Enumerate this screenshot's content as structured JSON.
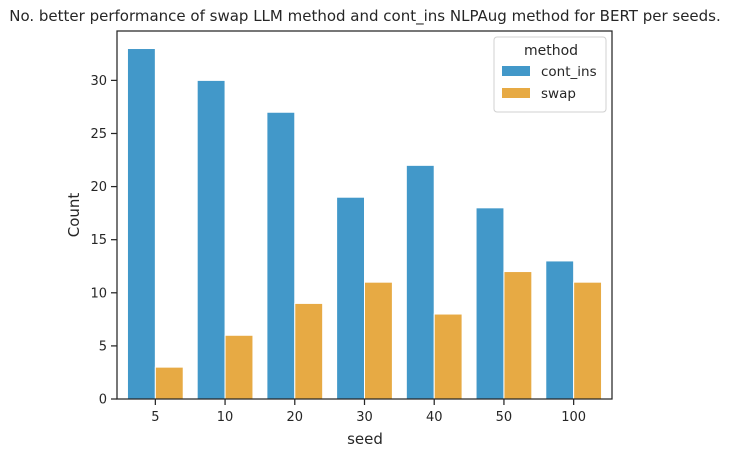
{
  "chart_data": {
    "type": "bar",
    "title": "No. better performance of swap LLM method and cont_ins NLPAug method for BERT per seeds.",
    "xlabel": "seed",
    "ylabel": "Count",
    "categories": [
      "5",
      "10",
      "20",
      "30",
      "40",
      "50",
      "100"
    ],
    "series": [
      {
        "name": "cont_ins",
        "color": "#4298c9",
        "values": [
          33,
          30,
          27,
          19,
          22,
          18,
          13
        ]
      },
      {
        "name": "swap",
        "color": "#e7aa44",
        "values": [
          3,
          6,
          9,
          11,
          8,
          12,
          11
        ]
      }
    ],
    "ylim": [
      0,
      34.65
    ],
    "yticks": [
      0,
      5,
      10,
      15,
      20,
      25,
      30
    ],
    "grid": false,
    "legend": {
      "title": "method",
      "placement": "top-right"
    }
  }
}
